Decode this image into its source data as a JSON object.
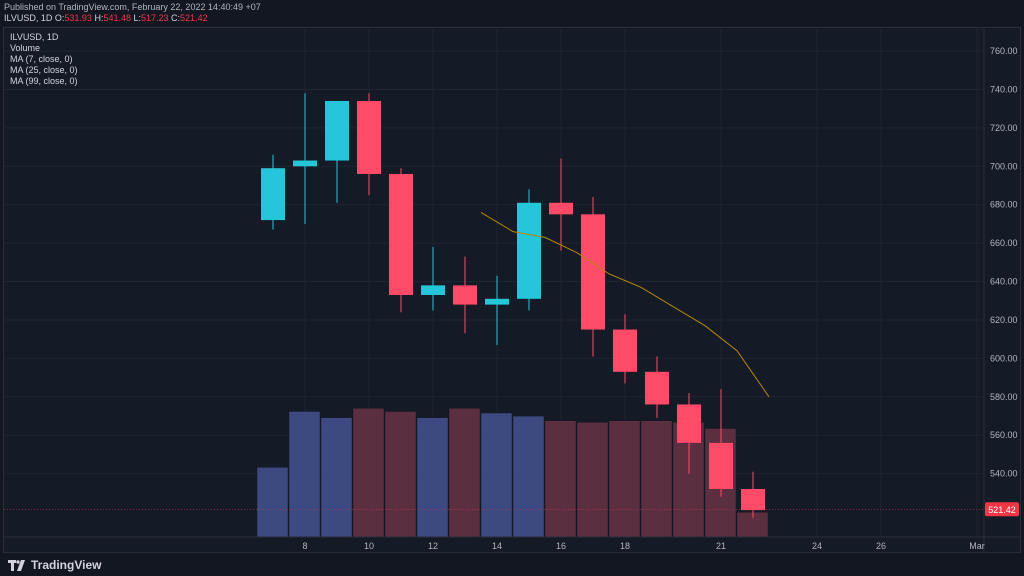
{
  "header": {
    "published": "Published on TradingView.com, February 22, 2022 14:40:49 +07",
    "symbol": "ILVUSD, 1D",
    "o_label": "O:",
    "o_value": "531.93",
    "h_label": "H:",
    "h_value": "541.48",
    "l_label": "L:",
    "l_value": "517.23",
    "c_label": "C:",
    "c_value": "521.42"
  },
  "legend": {
    "symbol": "ILVUSD, 1D",
    "volume": "Volume",
    "ma7": "MA (7, close, 0)",
    "ma25": "MA (25, close, 0)",
    "ma99": "MA (99, close, 0)"
  },
  "footer": {
    "brand": "TradingView"
  },
  "colors": {
    "up": "#26c6da",
    "down": "#ff4a68",
    "vol_up": "#3d4a82",
    "vol_down": "#5c2f40",
    "ma": "#b8860b",
    "last_price": "#f23645"
  },
  "chart_data": {
    "type": "candlestick",
    "symbol": "ILVUSD",
    "interval": "1D",
    "y_axis_ticks": [
      540,
      560,
      580,
      600,
      620,
      640,
      660,
      680,
      700,
      720,
      740,
      760
    ],
    "ylim": [
      507,
      772
    ],
    "x_axis_ticks": [
      "8",
      "10",
      "12",
      "14",
      "16",
      "18",
      "21",
      "24",
      "26",
      "Mar"
    ],
    "last_price": 521.42,
    "last_price_label": "521.42",
    "candles": [
      {
        "o": 672,
        "h": 706,
        "l": 667,
        "c": 699
      },
      {
        "o": 700,
        "h": 738,
        "l": 670,
        "c": 703
      },
      {
        "o": 703,
        "h": 734,
        "l": 681,
        "c": 734
      },
      {
        "o": 734,
        "h": 738,
        "l": 685,
        "c": 696
      },
      {
        "o": 696,
        "h": 699,
        "l": 624,
        "c": 633
      },
      {
        "o": 633,
        "h": 658,
        "l": 625,
        "c": 638
      },
      {
        "o": 638,
        "h": 653,
        "l": 613,
        "c": 628
      },
      {
        "o": 628,
        "h": 643,
        "l": 607,
        "c": 631
      },
      {
        "o": 631,
        "h": 688,
        "l": 625,
        "c": 681
      },
      {
        "o": 681,
        "h": 704,
        "l": 656,
        "c": 675
      },
      {
        "o": 675,
        "h": 684,
        "l": 601,
        "c": 615
      },
      {
        "o": 615,
        "h": 623,
        "l": 587,
        "c": 593
      },
      {
        "o": 593,
        "h": 601,
        "l": 569,
        "c": 576
      },
      {
        "o": 576,
        "h": 582,
        "l": 540,
        "c": 556
      },
      {
        "o": 556,
        "h": 584,
        "l": 528,
        "c": 532
      },
      {
        "o": 532,
        "h": 541,
        "l": 517,
        "c": 521
      }
    ],
    "volume_levels": [
      0.45,
      0.81,
      0.77,
      0.83,
      0.81,
      0.77,
      0.83,
      0.8,
      0.78,
      0.75,
      0.74,
      0.75,
      0.75,
      0.74,
      0.7,
      0.16
    ],
    "ma7": [
      {
        "i": 6.5,
        "v": 676
      },
      {
        "i": 7.5,
        "v": 666
      },
      {
        "i": 8.5,
        "v": 663
      },
      {
        "i": 9.5,
        "v": 655
      },
      {
        "i": 10.5,
        "v": 644
      },
      {
        "i": 11.5,
        "v": 637
      },
      {
        "i": 12.5,
        "v": 627
      },
      {
        "i": 13.5,
        "v": 617
      },
      {
        "i": 14.5,
        "v": 604
      },
      {
        "i": 15.5,
        "v": 580
      }
    ]
  }
}
